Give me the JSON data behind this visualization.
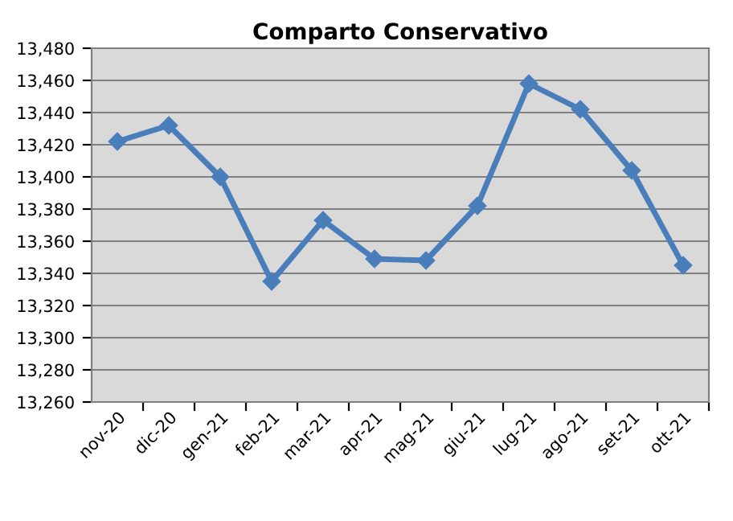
{
  "chart_data": {
    "type": "line",
    "title": "Comparto Conservativo",
    "categories": [
      "nov-20",
      "dic-20",
      "gen-21",
      "feb-21",
      "mar-21",
      "apr-21",
      "mag-21",
      "giu-21",
      "lug-21",
      "ago-21",
      "set-21",
      "ott-21"
    ],
    "series": [
      {
        "color": "#4a7ebb",
        "values": [
          13422,
          13432,
          13400,
          13335,
          13373,
          13349,
          13348,
          13382,
          13458,
          13442,
          13404,
          13345
        ]
      }
    ],
    "ylim": [
      13260,
      13480
    ],
    "yticks": [
      {
        "value": 13260,
        "label": "13,260"
      },
      {
        "value": 13280,
        "label": "13,280"
      },
      {
        "value": 13300,
        "label": "13,300"
      },
      {
        "value": 13320,
        "label": "13,320"
      },
      {
        "value": 13340,
        "label": "13,340"
      },
      {
        "value": 13360,
        "label": "13,360"
      },
      {
        "value": 13380,
        "label": "13,380"
      },
      {
        "value": 13400,
        "label": "13,400"
      },
      {
        "value": 13420,
        "label": "13,420"
      },
      {
        "value": 13440,
        "label": "13,440"
      },
      {
        "value": 13460,
        "label": "13,460"
      },
      {
        "value": 13480,
        "label": "13,480"
      }
    ],
    "grid": "y",
    "marker": "diamond",
    "line_style": "solid",
    "legend": false
  }
}
